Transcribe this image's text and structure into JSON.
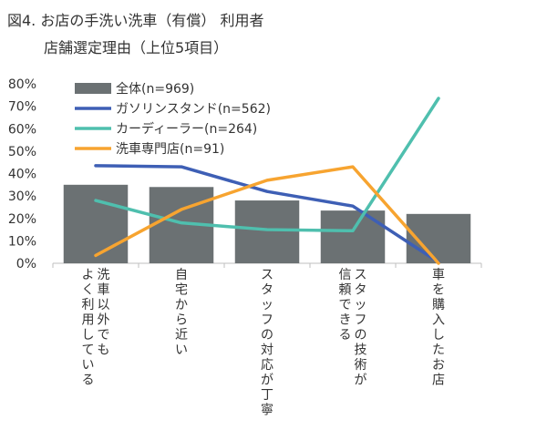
{
  "chart_data": {
    "type": "bar",
    "title_line1": "図4. お店の手洗い洗車（有償） 利用者",
    "title_line2": "店舗選定理由（上位5項目）",
    "categories": [
      [
        "洗車以外でも",
        "よく利用している"
      ],
      [
        "自宅から近い"
      ],
      [
        "スタッフの対応が丁寧"
      ],
      [
        "スタッフの技術が",
        "信頼できる"
      ],
      [
        "車を購入したお店"
      ]
    ],
    "ylim": [
      0,
      80
    ],
    "yticks": [
      "0%",
      "10%",
      "20%",
      "30%",
      "40%",
      "50%",
      "60%",
      "70%",
      "80%"
    ],
    "grid": false,
    "legend_position": "top-left",
    "series": [
      {
        "name": "全体(n=969)",
        "kind": "bar",
        "color": "#6b7173",
        "values": [
          35,
          34,
          28,
          23.5,
          22
        ]
      },
      {
        "name": "ガソリンスタンド(n=562)",
        "kind": "line",
        "color": "#3e5fb5",
        "values": [
          43.5,
          43,
          32,
          25.5,
          0.5
        ]
      },
      {
        "name": "カーディーラー(n=264)",
        "kind": "line",
        "color": "#4fbfae",
        "values": [
          28,
          18,
          15,
          14.5,
          73.5
        ]
      },
      {
        "name": "洗車専門店(n=91)",
        "kind": "line",
        "color": "#f7a430",
        "values": [
          3.5,
          24,
          37,
          43,
          0
        ]
      }
    ]
  }
}
